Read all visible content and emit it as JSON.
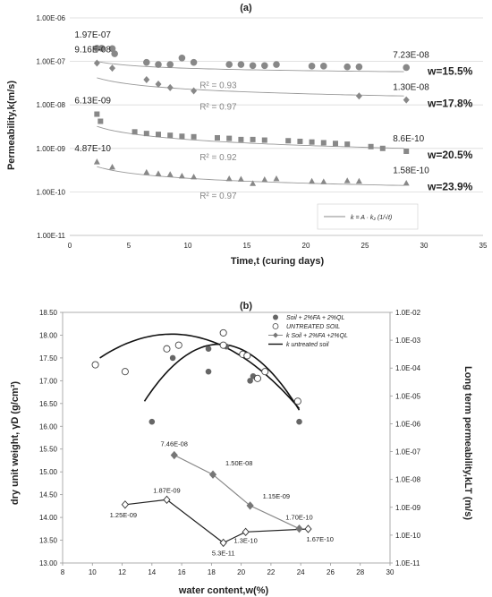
{
  "chart_data": [
    {
      "type": "scatter",
      "title": "(a)",
      "xlabel": "Time,t (curing days)",
      "ylabel": "Permeability,k(m/s)",
      "xlim": [
        0,
        35
      ],
      "xticks": [
        "0",
        "5",
        "10",
        "15",
        "20",
        "25",
        "30",
        "35"
      ],
      "ylim": [
        1e-11,
        1e-06
      ],
      "yscale": "log",
      "yticks": [
        "1.00E-11",
        "1.00E-10",
        "1.00E-09",
        "1.00E-08",
        "1.00E-07",
        "1.00E-06"
      ],
      "grid": true,
      "legend_formula": "k = A · k₂ (1/√t)",
      "series": [
        {
          "name": "w=15.5%",
          "marker": "circle",
          "points": [
            [
              2.3,
              2e-07
            ],
            [
              2.7,
              2e-07
            ],
            [
              3.6,
              1.97e-07
            ],
            [
              3.8,
              1.5e-07
            ],
            [
              6.5,
              9.5e-08
            ],
            [
              7.5,
              8.5e-08
            ],
            [
              8.5,
              8.5e-08
            ],
            [
              9.5,
              1.2e-07
            ],
            [
              10.5,
              9.5e-08
            ],
            [
              13.5,
              8.5e-08
            ],
            [
              14.5,
              8.5e-08
            ],
            [
              15.5,
              8e-08
            ],
            [
              16.5,
              8e-08
            ],
            [
              17.5,
              8.5e-08
            ],
            [
              20.5,
              7.8e-08
            ],
            [
              21.5,
              7.8e-08
            ],
            [
              23.5,
              7.5e-08
            ],
            [
              24.5,
              7.5e-08
            ],
            [
              28.5,
              7.23e-08
            ]
          ],
          "fit": [
            1e-07,
            5.8e-08
          ],
          "r2": "R² = 0.93",
          "first_label": "1.97E-07",
          "last_label": "7.23E-08"
        },
        {
          "name": "w=17.8%",
          "marker": "diamond",
          "points": [
            [
              2.3,
              9.16e-08
            ],
            [
              3.6,
              7e-08
            ],
            [
              6.5,
              3.8e-08
            ],
            [
              7.5,
              3e-08
            ],
            [
              8.5,
              2.5e-08
            ],
            [
              10.5,
              2.1e-08
            ],
            [
              24.5,
              1.6e-08
            ],
            [
              28.5,
              1.3e-08
            ]
          ],
          "fit": [
            4.2e-08,
            1.6e-08
          ],
          "r2": "R² = 0.97",
          "first_label": "9.16E-08",
          "last_label": "1.30E-08"
        },
        {
          "name": "w=20.5%",
          "marker": "square",
          "points": [
            [
              2.3,
              6.13e-09
            ],
            [
              2.6,
              4.2e-09
            ],
            [
              5.5,
              2.4e-09
            ],
            [
              6.5,
              2.2e-09
            ],
            [
              7.5,
              2.1e-09
            ],
            [
              8.5,
              2e-09
            ],
            [
              9.5,
              1.9e-09
            ],
            [
              10.5,
              1.85e-09
            ],
            [
              12.5,
              1.75e-09
            ],
            [
              13.5,
              1.7e-09
            ],
            [
              14.5,
              1.6e-09
            ],
            [
              15.5,
              1.6e-09
            ],
            [
              16.5,
              1.55e-09
            ],
            [
              18.5,
              1.5e-09
            ],
            [
              19.5,
              1.45e-09
            ],
            [
              20.5,
              1.4e-09
            ],
            [
              21.5,
              1.35e-09
            ],
            [
              22.5,
              1.3e-09
            ],
            [
              23.5,
              1.25e-09
            ],
            [
              25.5,
              1.1e-09
            ],
            [
              26.5,
              1e-09
            ],
            [
              28.5,
              8.6e-10
            ]
          ],
          "fit": [
            3.2e-09,
            1e-09
          ],
          "r2": "R² = 0.92",
          "first_label": "6.13E-09",
          "last_label": "8.6E-10"
        },
        {
          "name": "w=23.9%",
          "marker": "triangle",
          "points": [
            [
              2.3,
              4.87e-10
            ],
            [
              3.6,
              3.7e-10
            ],
            [
              6.5,
              2.8e-10
            ],
            [
              7.5,
              2.6e-10
            ],
            [
              8.5,
              2.5e-10
            ],
            [
              9.5,
              2.3e-10
            ],
            [
              10.5,
              2.2e-10
            ],
            [
              13.5,
              2e-10
            ],
            [
              14.5,
              1.95e-10
            ],
            [
              15.5,
              1.55e-10
            ],
            [
              16.5,
              1.9e-10
            ],
            [
              17.5,
              2e-10
            ],
            [
              20.5,
              1.75e-10
            ],
            [
              21.5,
              1.7e-10
            ],
            [
              23.5,
              1.8e-10
            ],
            [
              24.5,
              1.75e-10
            ],
            [
              28.5,
              1.58e-10
            ]
          ],
          "fit": [
            3.8e-10,
            1.4e-10
          ],
          "r2": "R² = 0.97",
          "first_label": "4.87E-10",
          "last_label": "1.58E-10"
        }
      ]
    },
    {
      "type": "scatter",
      "title": "(b)",
      "xlabel": "water content,w(%)",
      "ylabel": "dry unit weight, γD (g/cm³)",
      "y2label": "Long term permeability,kLT (m/s)",
      "xlim": [
        8,
        30
      ],
      "xticks": [
        "8",
        "10",
        "12",
        "14",
        "16",
        "18",
        "20",
        "22",
        "24",
        "26",
        "28",
        "30"
      ],
      "ylim": [
        13.0,
        18.5
      ],
      "yticks": [
        "13.00",
        "13.50",
        "14.00",
        "14.50",
        "15.00",
        "15.50",
        "16.00",
        "16.50",
        "17.00",
        "17.50",
        "18.00",
        "18.50"
      ],
      "y2lim": [
        1e-11,
        0.01
      ],
      "y2scale": "log",
      "y2ticks": [
        "1.0E-11",
        "1.0E-10",
        "1.0E-09",
        "1.0E-08",
        "1.0E-07",
        "1.0E-06",
        "1.0E-05",
        "1.0E-04",
        "1.0E-03",
        "1.0E-02"
      ],
      "legend": [
        "Soil + 2%FA + 2%QL",
        "UNTREATED SOIL",
        "k Soil + 2%FA +2%QL",
        "k untreated soil"
      ],
      "series": [
        {
          "name": "Soil + 2%FA + 2%QL",
          "marker": "filled-circle",
          "points": [
            [
              14.0,
              16.1
            ],
            [
              15.4,
              17.5
            ],
            [
              17.8,
              17.7
            ],
            [
              17.8,
              17.2
            ],
            [
              19.0,
              17.75
            ],
            [
              20.6,
              17.0
            ],
            [
              20.8,
              17.1
            ],
            [
              23.9,
              16.1
            ]
          ]
        },
        {
          "name": "UNTREATED SOIL",
          "marker": "open-circle",
          "points": [
            [
              10.2,
              17.35
            ],
            [
              12.2,
              17.2
            ],
            [
              15.0,
              17.7
            ],
            [
              15.8,
              17.78
            ],
            [
              18.8,
              18.05
            ],
            [
              18.8,
              17.78
            ],
            [
              20.1,
              17.58
            ],
            [
              20.4,
              17.55
            ],
            [
              21.1,
              17.05
            ],
            [
              21.6,
              17.2
            ],
            [
              23.8,
              16.55
            ]
          ]
        },
        {
          "name": "k Soil + 2%FA +2%QL",
          "marker": "filled-diamond",
          "points": [
            [
              15.5,
              7.46e-08
            ],
            [
              18.1,
              1.5e-08
            ],
            [
              20.6,
              1.15e-09
            ],
            [
              23.9,
              1.7e-10
            ]
          ],
          "labels": [
            "7.46E-08",
            "1.50E-08",
            "1.15E-09",
            "1.70E-10"
          ]
        },
        {
          "name": "k untreated soil",
          "marker": "open-diamond",
          "points": [
            [
              12.2,
              1.25e-09
            ],
            [
              15.0,
              1.87e-09
            ],
            [
              18.8,
              5.3e-11
            ],
            [
              20.3,
              1.3e-10
            ],
            [
              24.5,
              1.67e-10
            ]
          ],
          "labels": [
            "1.25E-09",
            "1.87E-09",
            "5.3E-11",
            "1.3E-10",
            "1.67E-10"
          ]
        }
      ],
      "trend_untreated": [
        [
          10.5,
          17.5
        ],
        [
          18.5,
          17.8
        ],
        [
          24.0,
          16.35
        ]
      ],
      "trend_treated": [
        [
          13.5,
          16.55
        ],
        [
          18.5,
          17.8
        ],
        [
          24.0,
          16.3
        ]
      ]
    }
  ]
}
